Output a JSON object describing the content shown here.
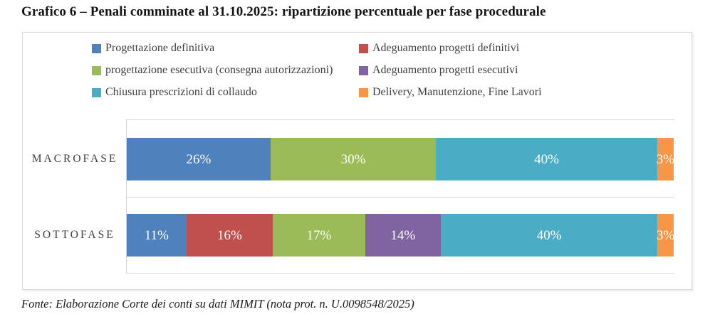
{
  "title": "Grafico 6 – Penali comminate al 31.10.2025: ripartizione percentuale per fase procedurale",
  "footer": "Fonte: Elaborazione Corte dei conti su dati MIMIT (nota prot. n. U.0098548/2025)",
  "colors": {
    "blue": "#4F81BD",
    "red": "#C0504D",
    "green": "#9BBB59",
    "purple": "#8064A2",
    "teal": "#4BACC6",
    "orange": "#F79646",
    "grid": "#D9D9D9",
    "legend_text": "#404040",
    "bar_label_text": "#FFFFFF"
  },
  "chart_data": {
    "type": "bar",
    "stacked": true,
    "orientation": "horizontal",
    "value_format": "percent",
    "xlim": [
      0,
      100
    ],
    "grid": true,
    "legend_position": "top",
    "categories": [
      "MACROFASE",
      "SOTTOFASE"
    ],
    "series": [
      {
        "name": "Progettazione definitiva",
        "color": "#4F81BD",
        "values": [
          26,
          11
        ]
      },
      {
        "name": "Adeguamento progetti definitivi",
        "color": "#C0504D",
        "values": [
          0,
          16
        ]
      },
      {
        "name": "progettazione esecutiva (consegna autorizzazioni)",
        "color": "#9BBB59",
        "values": [
          30,
          17
        ]
      },
      {
        "name": "Adeguamento progetti esecutivi",
        "color": "#8064A2",
        "values": [
          0,
          14
        ]
      },
      {
        "name": "Chiusura prescrizioni di collaudo",
        "color": "#4BACC6",
        "values": [
          40,
          40
        ]
      },
      {
        "name": "Delivery, Manutenzione, Fine Lavori",
        "color": "#F79646",
        "values": [
          3,
          3
        ]
      }
    ]
  }
}
